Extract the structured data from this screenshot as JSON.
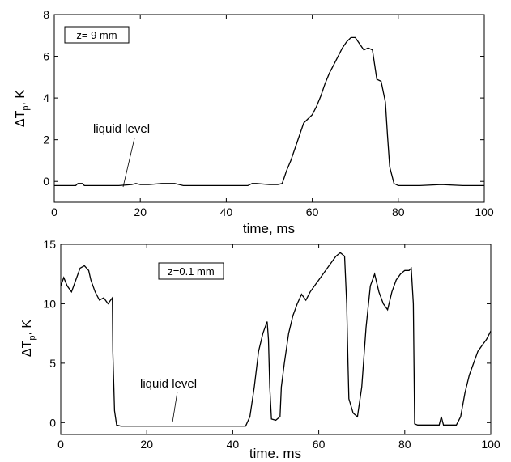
{
  "chart_data": [
    {
      "type": "line",
      "box_label": "z= 9 mm",
      "annotation": "liquid level",
      "ylabel": {
        "delta": "ΔT",
        "sub": "p",
        "unit": ", K"
      },
      "xlabel": "time, ms",
      "xlim": [
        0,
        100
      ],
      "ylim": [
        -1,
        8
      ],
      "xticks": [
        0,
        20,
        40,
        60,
        80,
        100
      ],
      "yticks": [
        0,
        2,
        4,
        6,
        8
      ],
      "grid": false,
      "series": [
        {
          "x": [
            0,
            5,
            5.5,
            6.5,
            7,
            10,
            15,
            18,
            19,
            20,
            22,
            25,
            28,
            30,
            35,
            40,
            45,
            46,
            47,
            50,
            52,
            53,
            53.5,
            54,
            55,
            56,
            57,
            58,
            59,
            60,
            61,
            62,
            63,
            64,
            65,
            66,
            67,
            68,
            69,
            70,
            71,
            72,
            73,
            74,
            74.5,
            75,
            76,
            77,
            77.5,
            78,
            79,
            80,
            85,
            90,
            95,
            100
          ],
          "y": [
            -0.2,
            -0.2,
            -0.1,
            -0.1,
            -0.2,
            -0.2,
            -0.2,
            -0.15,
            -0.1,
            -0.15,
            -0.15,
            -0.1,
            -0.1,
            -0.2,
            -0.2,
            -0.2,
            -0.2,
            -0.1,
            -0.1,
            -0.15,
            -0.15,
            -0.1,
            0.2,
            0.5,
            1.0,
            1.6,
            2.2,
            2.8,
            3.0,
            3.2,
            3.6,
            4.1,
            4.7,
            5.2,
            5.6,
            6.0,
            6.4,
            6.7,
            6.9,
            6.9,
            6.6,
            6.3,
            6.4,
            6.3,
            5.6,
            4.9,
            4.8,
            3.8,
            2.2,
            0.7,
            -0.1,
            -0.2,
            -0.2,
            -0.15,
            -0.2,
            -0.2
          ]
        }
      ]
    },
    {
      "type": "line",
      "box_label": "z=0.1 mm",
      "annotation": "liquid level",
      "ylabel": {
        "delta": "ΔT",
        "sub": "p",
        "unit": ", K"
      },
      "xlabel": "time. ms",
      "xlim": [
        0,
        100
      ],
      "ylim": [
        -1,
        15
      ],
      "xticks": [
        0,
        20,
        40,
        60,
        80,
        100
      ],
      "yticks": [
        0,
        5,
        10,
        15
      ],
      "grid": false,
      "series": [
        {
          "x": [
            0,
            0.7,
            1.5,
            2.5,
            3.5,
            4.5,
            5.5,
            6.5,
            7,
            8,
            9,
            10,
            11,
            12,
            12.1,
            12.5,
            13,
            14,
            15,
            17,
            20,
            25,
            30,
            35,
            40,
            43,
            44,
            45,
            46,
            47,
            47.5,
            48,
            48.3,
            48.6,
            49,
            50,
            51,
            51.3,
            52,
            53,
            54,
            55,
            56,
            57,
            58,
            59,
            60,
            61,
            62,
            63,
            64,
            65,
            66,
            66.5,
            66.8,
            67,
            68,
            69,
            70,
            71,
            72,
            73,
            74,
            75,
            76,
            77,
            78,
            79,
            80,
            81,
            81.5,
            82,
            82.3,
            83,
            85,
            88,
            88.5,
            89,
            92,
            93,
            94,
            95,
            96,
            97,
            98,
            99,
            100
          ],
          "y": [
            11.5,
            12.2,
            11.5,
            11.0,
            12.0,
            13.0,
            13.2,
            12.8,
            12.0,
            11.0,
            10.3,
            10.5,
            10.0,
            10.5,
            6.0,
            1.0,
            -0.2,
            -0.3,
            -0.3,
            -0.3,
            -0.3,
            -0.3,
            -0.3,
            -0.3,
            -0.3,
            -0.3,
            0.5,
            3.0,
            6.0,
            7.5,
            8.0,
            8.5,
            7.0,
            3.0,
            0.3,
            0.2,
            0.5,
            3.0,
            5.0,
            7.5,
            9.0,
            10.0,
            10.8,
            10.3,
            11.0,
            11.5,
            12.0,
            12.5,
            13.0,
            13.5,
            14.0,
            14.3,
            14.0,
            10.0,
            5.0,
            2.0,
            0.8,
            0.5,
            3.0,
            8.0,
            11.5,
            12.5,
            11.0,
            10.0,
            9.5,
            11.0,
            12.0,
            12.5,
            12.8,
            12.8,
            13.0,
            10.0,
            -0.1,
            -0.2,
            -0.2,
            -0.2,
            0.5,
            -0.2,
            -0.2,
            0.5,
            2.5,
            4.0,
            5.0,
            6.0,
            6.5,
            7.0,
            7.7
          ]
        }
      ]
    }
  ]
}
